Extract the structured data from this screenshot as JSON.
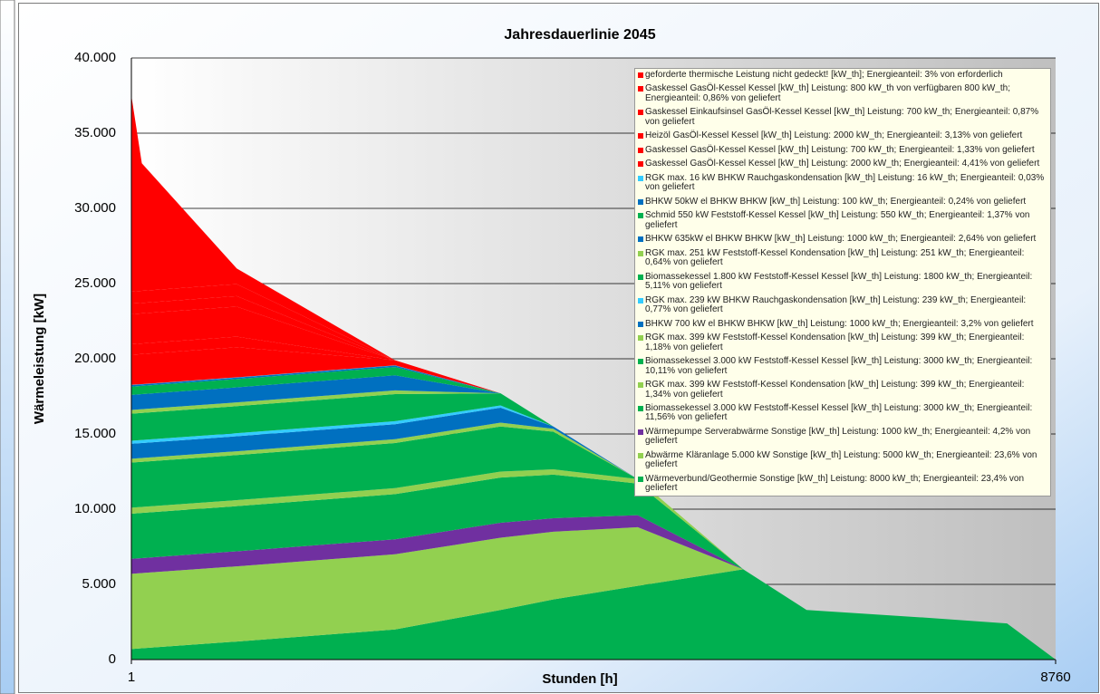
{
  "chart_data": {
    "type": "stacked-area",
    "title": "Jahresdauerlinie 2045",
    "x_label": "Stunden [h]",
    "y_label": "Wärmeleistung [kW]",
    "x": [
      1,
      100,
      1000,
      2500,
      3500,
      4000,
      4800,
      5800,
      6400,
      7500,
      8300,
      8760
    ],
    "xlim": [
      1,
      8760
    ],
    "xticks": [
      1,
      8760
    ],
    "ylim": [
      0,
      40000
    ],
    "yticks": [
      0,
      {
        "value": 5000,
        "label": "5.000"
      },
      {
        "value": 10000,
        "label": "10.000"
      },
      {
        "value": 15000,
        "label": "15.000"
      },
      {
        "value": 20000,
        "label": "20.000"
      },
      {
        "value": 25000,
        "label": "25.000"
      },
      {
        "value": 30000,
        "label": "30.000"
      },
      {
        "value": 35000,
        "label": "35.000"
      },
      {
        "value": 40000,
        "label": "40.000"
      }
    ],
    "grid": true,
    "legend": "upper right",
    "series": [
      {
        "name": "geforderte thermische Leistung nicht gedeckt! [kW_th]; Energieanteil: 3%  von erforderlich",
        "color": "#ff0000",
        "values": [
          13034,
          8484,
          1034,
          0,
          0,
          0,
          0,
          0,
          0,
          0,
          0,
          0
        ]
      },
      {
        "name": "Gaskessel GasÖl-Kessel Kessel [kW_th] Leistung: 800 kW_th von verfügbaren 800 kW_th; Energieanteil: 0,86% von geliefert",
        "color": "#ff0000",
        "values": [
          800,
          800,
          800,
          0,
          0,
          0,
          0,
          0,
          0,
          0,
          0,
          0
        ]
      },
      {
        "name": "Gaskessel Einkaufsinsel GasÖl-Kessel Kessel [kW_th] Leistung: 700 kW_th; Energieanteil: 0,87% von geliefert",
        "color": "#ff0000",
        "values": [
          700,
          700,
          700,
          0,
          0,
          0,
          0,
          0,
          0,
          0,
          0,
          0
        ]
      },
      {
        "name": "Heizöl GasÖl-Kessel Kessel [kW_th] Leistung: 2000 kW_th; Energieanteil: 3,13% von geliefert",
        "color": "#ff0000",
        "values": [
          2000,
          2000,
          2000,
          0,
          0,
          0,
          0,
          0,
          0,
          0,
          0,
          0
        ]
      },
      {
        "name": "Gaskessel  GasÖl-Kessel Kessel [kW_th] Leistung: 700 kW_th; Energieanteil: 1,33% von geliefert",
        "color": "#ff0000",
        "values": [
          700,
          700,
          700,
          0,
          0,
          0,
          0,
          0,
          0,
          0,
          0,
          0
        ]
      },
      {
        "name": "Gaskessel GasÖl-Kessel Kessel [kW_th] Leistung: 2000 kW_th; Energieanteil: 4,41% von geliefert",
        "color": "#ff0000",
        "values": [
          2000,
          2000,
          2000,
          334,
          0,
          0,
          0,
          0,
          0,
          0,
          0,
          0
        ]
      },
      {
        "name": "RGK max. 16 kW BHKW Rauchgaskondensation [kW_th] Leistung: 16 kW_th; Energieanteil: 0,03% von geliefert",
        "color": "#33ccff",
        "values": [
          16,
          16,
          16,
          16,
          0,
          0,
          0,
          0,
          0,
          0,
          0,
          0
        ]
      },
      {
        "name": "BHKW 50kW el BHKW BHKW [kW_th] Leistung: 100 kW_th; Energieanteil: 0,24% von geliefert",
        "color": "#0070c0",
        "values": [
          100,
          100,
          100,
          100,
          0,
          0,
          0,
          0,
          0,
          0,
          0,
          0
        ]
      },
      {
        "name": "Schmid 550 kW Feststoff-Kessel Kessel [kW_th] Leistung: 550 kW_th; Energieanteil: 1,37% von geliefert",
        "color": "#00b050",
        "values": [
          550,
          550,
          550,
          550,
          0,
          0,
          0,
          0,
          0,
          0,
          0,
          0
        ]
      },
      {
        "name": "BHKW 635kW el BHKW BHKW [kW_th] Leistung: 1000 kW_th; Energieanteil: 2,64% von geliefert",
        "color": "#0070c0",
        "values": [
          1000,
          1000,
          1000,
          1000,
          0,
          0,
          0,
          0,
          0,
          0,
          0,
          0
        ]
      },
      {
        "name": "RGK max. 251 kW Feststoff-Kessel Kondensation [kW_th] Leistung: 251 kW_th; Energieanteil: 0,64% von geliefert",
        "color": "#92d050",
        "values": [
          250,
          250,
          250,
          250,
          0,
          0,
          0,
          0,
          0,
          0,
          0,
          0
        ]
      },
      {
        "name": "Biomassekessel 1.800 kW Feststoff-Kessel Kessel [kW_th] Leistung: 1800 kW_th; Energieanteil: 5,11% von geliefert",
        "color": "#00b050",
        "values": [
          1800,
          1800,
          1800,
          1800,
          800,
          0,
          0,
          0,
          0,
          0,
          0,
          0
        ]
      },
      {
        "name": "RGK max. 239 kW BHKW Rauchgaskondensation [kW_th] Leistung: 239 kW_th; Energieanteil: 0,77% von geliefert",
        "color": "#33ccff",
        "values": [
          200,
          200,
          200,
          200,
          150,
          0,
          0,
          0,
          0,
          0,
          0,
          0
        ]
      },
      {
        "name": "BHKW 700 kW el BHKW BHKW [kW_th] Leistung: 1000 kW_th; Energieanteil: 3,2% von geliefert",
        "color": "#0070c0",
        "values": [
          1000,
          1000,
          1000,
          1000,
          1000,
          150,
          0,
          0,
          0,
          0,
          0,
          0
        ]
      },
      {
        "name": "RGK max. 399 kW Feststoff-Kessel Kondensation [kW_th] Leistung: 399 kW_th; Energieanteil: 1,18% von geliefert",
        "color": "#92d050",
        "values": [
          250,
          250,
          250,
          250,
          250,
          200,
          0,
          0,
          0,
          0,
          0,
          0
        ]
      },
      {
        "name": "Biomassekessel 3.000 kW Feststoff-Kessel Kessel [kW_th] Leistung: 3000 kW_th; Energieanteil: 10,11% von geliefert",
        "color": "#00b050",
        "values": [
          3000,
          3000,
          3000,
          3000,
          3000,
          2500,
          0,
          0,
          0,
          0,
          0,
          0
        ]
      },
      {
        "name": "RGK max. 399 kW Feststoff-Kessel Kondensation [kW_th] Leistung: 399 kW_th; Energieanteil: 1,34% von geliefert",
        "color": "#92d050",
        "values": [
          400,
          400,
          400,
          400,
          400,
          350,
          300,
          0,
          0,
          0,
          0,
          0
        ]
      },
      {
        "name": "Biomassekessel 3.000 kW Feststoff-Kessel Kessel [kW_th] Leistung: 3000 kW_th; Energieanteil: 11,56% von geliefert",
        "color": "#00b050",
        "values": [
          3000,
          3000,
          3000,
          3000,
          3000,
          2900,
          2100,
          0,
          0,
          0,
          0,
          0
        ]
      },
      {
        "name": "Wärmepumpe Serverabwärme Sonstige [kW_th] Leistung: 1000 kW_th; Energieanteil: 4,2% von geliefert",
        "color": "#7030a0",
        "values": [
          1000,
          1000,
          1000,
          1000,
          1000,
          900,
          800,
          0,
          0,
          0,
          0,
          0
        ]
      },
      {
        "name": "Abwärme Kläranlage 5.000 kW Sonstige [kW_th] Leistung: 5000 kW_th; Energieanteil: 23,6% von geliefert",
        "color": "#92d050",
        "values": [
          5000,
          5000,
          5000,
          5000,
          4800,
          4500,
          3900,
          0,
          0,
          0,
          0,
          0
        ]
      },
      {
        "name": "Wärmeverbund/Geothermie Sonstige [kW_th] Leistung: 8000 kW_th; Energieanteil: 23,4% von geliefert",
        "color": "#00b050",
        "values": [
          700,
          750,
          1200,
          2000,
          3300,
          4000,
          4900,
          6000,
          3300,
          2800,
          2400,
          0
        ]
      }
    ]
  }
}
